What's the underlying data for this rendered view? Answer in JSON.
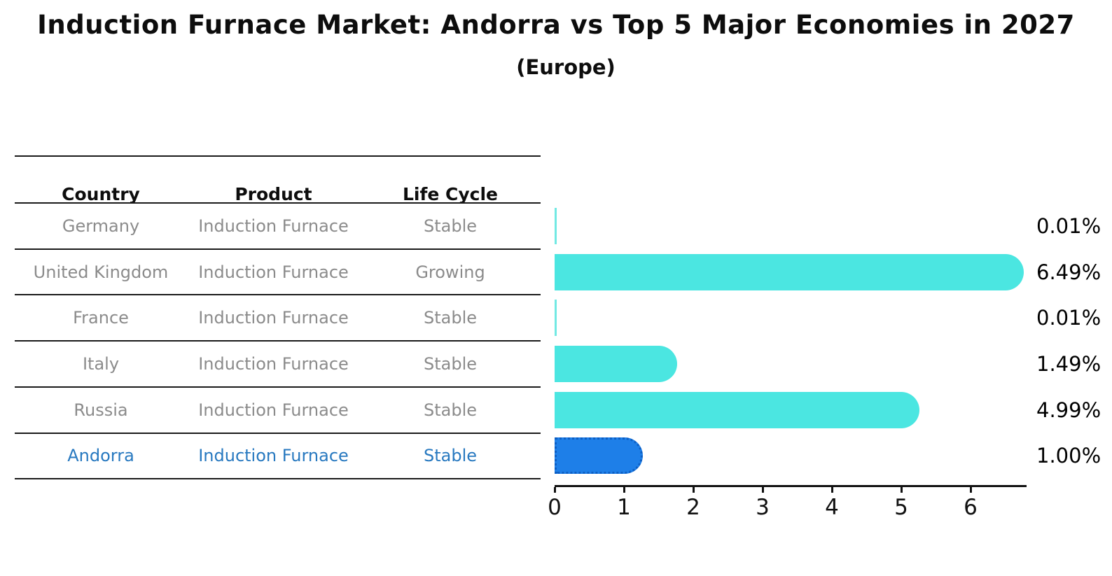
{
  "title": "Induction Furnace Market: Andorra vs Top 5 Major Economies in 2027",
  "subtitle": "(Europe)",
  "table": {
    "headers": [
      "Country",
      "Product",
      "Life Cycle"
    ],
    "rows": [
      {
        "country": "Germany",
        "product": "Induction Furnace",
        "life_cycle": "Stable",
        "highlighted": false
      },
      {
        "country": "United Kingdom",
        "product": "Induction Furnace",
        "life_cycle": "Growing",
        "highlighted": false
      },
      {
        "country": "France",
        "product": "Induction Furnace",
        "life_cycle": "Stable",
        "highlighted": false
      },
      {
        "country": "Italy",
        "product": "Induction Furnace",
        "life_cycle": "Stable",
        "highlighted": false
      },
      {
        "country": "Russia",
        "product": "Induction Furnace",
        "life_cycle": "Stable",
        "highlighted": false
      },
      {
        "country": "Andorra",
        "product": "Induction Furnace",
        "life_cycle": "Stable",
        "highlighted": true
      }
    ]
  },
  "chart_data": {
    "type": "bar",
    "orientation": "horizontal",
    "title": "Induction Furnace Market: Andorra vs Top 5 Major Economies in 2027",
    "subtitle": "(Europe)",
    "categories": [
      "Germany",
      "United Kingdom",
      "France",
      "Italy",
      "Russia",
      "Andorra"
    ],
    "values": [
      0.01,
      6.49,
      0.01,
      1.49,
      4.99,
      1.0
    ],
    "value_labels": [
      "0.01%",
      "6.49%",
      "0.01%",
      "1.49%",
      "4.99%",
      "1.00%"
    ],
    "x_ticks": [
      "0",
      "1",
      "2",
      "3",
      "4",
      "5",
      "6"
    ],
    "xlim": [
      0,
      6.8
    ],
    "grid": false,
    "legend": "none",
    "bar_color": "#4BE6E1",
    "sliver_color": "#72E9E3",
    "highlight_color": "#1E7FE8",
    "highlight_border_color": "#0D5FC4",
    "highlight_index": 5,
    "highlight_category": "Andorra"
  }
}
